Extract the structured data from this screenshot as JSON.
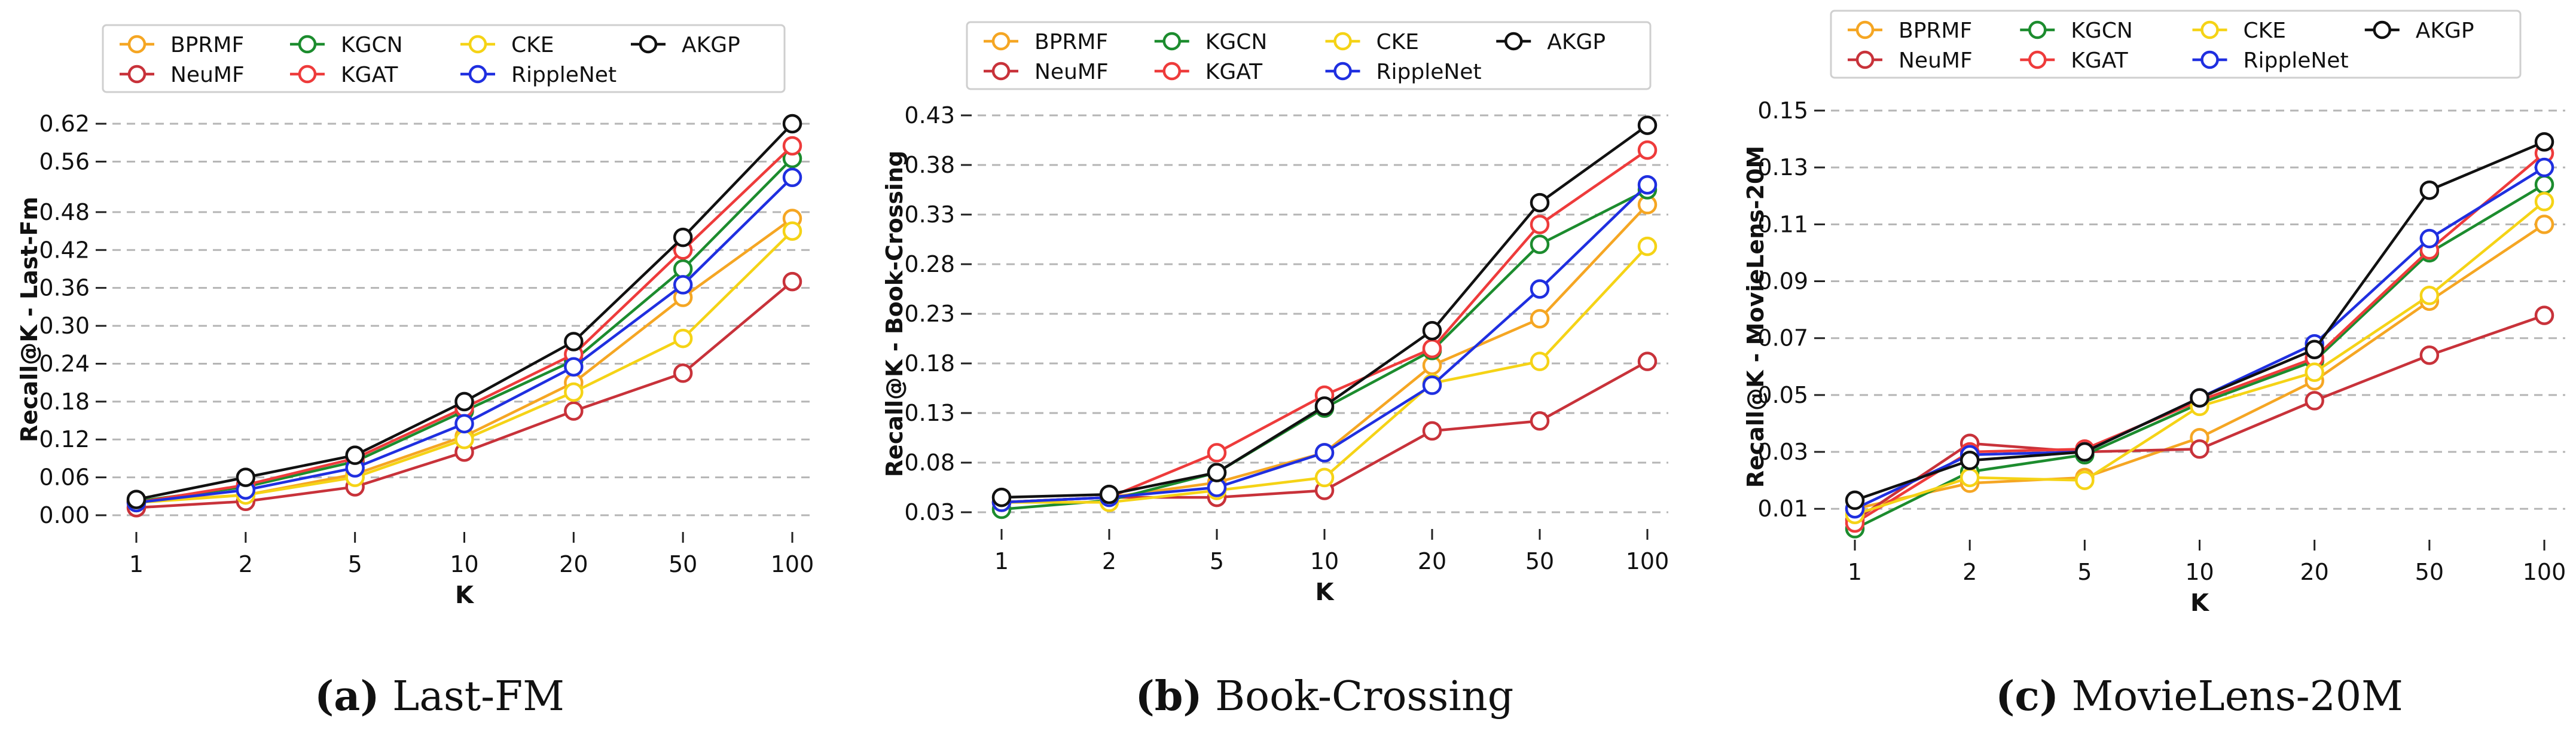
{
  "series_styles": [
    {
      "name": "BPRMF",
      "color": "#f5a623"
    },
    {
      "name": "NeuMF",
      "color": "#c8323a"
    },
    {
      "name": "KGCN",
      "color": "#1c8c2e"
    },
    {
      "name": "KGAT",
      "color": "#ee3b3b"
    },
    {
      "name": "CKE",
      "color": "#f5d316"
    },
    {
      "name": "RippleNet",
      "color": "#1f2fe0"
    },
    {
      "name": "AKGP",
      "color": "#111111"
    }
  ],
  "chart_data": [
    {
      "type": "line",
      "caption_letter": "(a)",
      "caption_text": " Last-FM",
      "xlabel": "K",
      "ylabel": "Recall@K - Last-Fm",
      "categories": [
        "1",
        "2",
        "5",
        "10",
        "20",
        "50",
        "100"
      ],
      "ylim": [
        0.0,
        0.62
      ],
      "yticks": [
        "0.00",
        "0.06",
        "0.12",
        "0.18",
        "0.24",
        "0.30",
        "0.36",
        "0.42",
        "0.48",
        "0.56",
        "0.62"
      ],
      "grid": "horizontal dashed",
      "legend": "top",
      "series": [
        {
          "name": "BPRMF",
          "values": [
            0.022,
            0.032,
            0.065,
            0.125,
            0.21,
            0.345,
            0.47
          ]
        },
        {
          "name": "NeuMF",
          "values": [
            0.012,
            0.022,
            0.045,
            0.1,
            0.165,
            0.225,
            0.37
          ]
        },
        {
          "name": "KGCN",
          "values": [
            0.022,
            0.045,
            0.085,
            0.165,
            0.245,
            0.39,
            0.565
          ]
        },
        {
          "name": "KGAT",
          "values": [
            0.02,
            0.048,
            0.09,
            0.17,
            0.255,
            0.42,
            0.585
          ]
        },
        {
          "name": "CKE",
          "values": [
            0.02,
            0.032,
            0.06,
            0.12,
            0.195,
            0.28,
            0.45
          ]
        },
        {
          "name": "RippleNet",
          "values": [
            0.02,
            0.04,
            0.075,
            0.145,
            0.235,
            0.365,
            0.535
          ]
        },
        {
          "name": "AKGP",
          "values": [
            0.025,
            0.06,
            0.095,
            0.18,
            0.275,
            0.44,
            0.62
          ]
        }
      ]
    },
    {
      "type": "line",
      "caption_letter": "(b)",
      "caption_text": " Book-Crossing",
      "xlabel": "K",
      "ylabel": "Recall@K - Book-Crossing",
      "categories": [
        "1",
        "2",
        "5",
        "10",
        "20",
        "50",
        "100"
      ],
      "ylim": [
        0.03,
        0.43
      ],
      "yticks": [
        "0.03",
        "0.08",
        "0.13",
        "0.18",
        "0.23",
        "0.28",
        "0.33",
        "0.38",
        "0.43"
      ],
      "grid": "horizontal dashed",
      "legend": "top",
      "series": [
        {
          "name": "BPRMF",
          "values": [
            0.04,
            0.045,
            0.06,
            0.09,
            0.178,
            0.225,
            0.34
          ]
        },
        {
          "name": "NeuMF",
          "values": [
            0.04,
            0.045,
            0.045,
            0.052,
            0.112,
            0.122,
            0.182
          ]
        },
        {
          "name": "KGCN",
          "values": [
            0.033,
            0.042,
            0.07,
            0.135,
            0.193,
            0.3,
            0.355
          ]
        },
        {
          "name": "KGAT",
          "values": [
            0.04,
            0.045,
            0.09,
            0.148,
            0.195,
            0.32,
            0.395
          ]
        },
        {
          "name": "CKE",
          "values": [
            0.04,
            0.04,
            0.052,
            0.065,
            0.16,
            0.182,
            0.298
          ]
        },
        {
          "name": "RippleNet",
          "values": [
            0.04,
            0.045,
            0.055,
            0.09,
            0.158,
            0.255,
            0.36
          ]
        },
        {
          "name": "AKGP",
          "values": [
            0.045,
            0.048,
            0.07,
            0.137,
            0.213,
            0.342,
            0.42
          ]
        }
      ]
    },
    {
      "type": "line",
      "caption_letter": "(c)",
      "caption_text": " MovieLens-20M",
      "xlabel": "K",
      "ylabel": "Recall@K - MovieLens-20M",
      "categories": [
        "1",
        "2",
        "5",
        "10",
        "20",
        "50",
        "100"
      ],
      "ylim": [
        0.005,
        0.15
      ],
      "yticks": [
        "0.01",
        "0.03",
        "0.05",
        "0.07",
        "0.09",
        "0.11",
        "0.13",
        "0.15"
      ],
      "grid": "horizontal dashed",
      "legend": "top",
      "series": [
        {
          "name": "BPRMF",
          "values": [
            0.01,
            0.019,
            0.021,
            0.035,
            0.055,
            0.083,
            0.11
          ]
        },
        {
          "name": "NeuMF",
          "values": [
            0.006,
            0.033,
            0.03,
            0.031,
            0.048,
            0.064,
            0.078
          ]
        },
        {
          "name": "KGCN",
          "values": [
            0.003,
            0.023,
            0.029,
            0.047,
            0.062,
            0.1,
            0.124
          ]
        },
        {
          "name": "KGAT",
          "values": [
            0.005,
            0.03,
            0.031,
            0.048,
            0.063,
            0.101,
            0.135
          ]
        },
        {
          "name": "CKE",
          "values": [
            0.008,
            0.021,
            0.02,
            0.046,
            0.058,
            0.085,
            0.118
          ]
        },
        {
          "name": "RippleNet",
          "values": [
            0.01,
            0.029,
            0.03,
            0.049,
            0.068,
            0.105,
            0.13
          ]
        },
        {
          "name": "AKGP",
          "values": [
            0.013,
            0.027,
            0.03,
            0.049,
            0.066,
            0.122,
            0.139
          ]
        }
      ]
    }
  ]
}
